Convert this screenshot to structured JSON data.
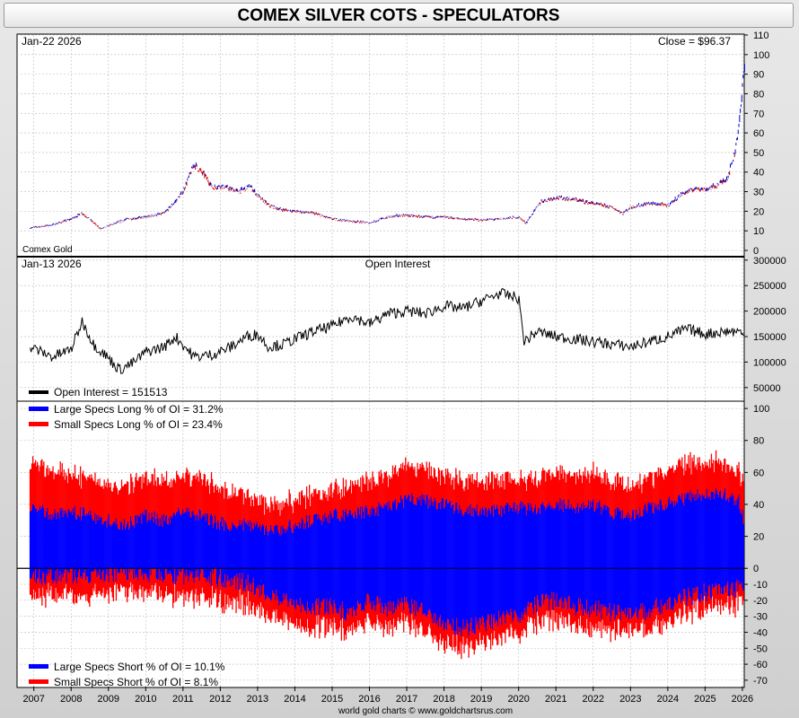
{
  "title": "COMEX SILVER COTS - SPECULATORS",
  "footer": "world gold charts © www.goldchartsrus.com",
  "colors": {
    "price_up": "#0000cc",
    "price_down": "#cc0000",
    "oi_line": "#000000",
    "large_specs": "#0000ff",
    "small_specs": "#ff0000",
    "frame_bg": "#d9d9d9"
  },
  "chart_data": [
    {
      "type": "line",
      "panel": "price",
      "date_label": "Jan-22  2026",
      "close_label": "Close = $96.37",
      "series_label": "Comex Gold",
      "ylim": [
        0,
        110
      ],
      "yticks": [
        0,
        10,
        20,
        30,
        40,
        50,
        60,
        70,
        80,
        90,
        100,
        110
      ],
      "x": [
        2006.9,
        2007.5,
        2008.0,
        2008.3,
        2008.8,
        2009.0,
        2009.5,
        2010.0,
        2010.5,
        2010.8,
        2011.0,
        2011.3,
        2011.6,
        2011.8,
        2012.0,
        2012.5,
        2012.8,
        2013.0,
        2013.3,
        2013.6,
        2014.0,
        2014.5,
        2015.0,
        2015.5,
        2016.0,
        2016.5,
        2016.9,
        2017.5,
        2018.0,
        2018.5,
        2019.0,
        2019.5,
        2020.0,
        2020.2,
        2020.6,
        2021.0,
        2021.5,
        2022.0,
        2022.5,
        2022.8,
        2023.0,
        2023.5,
        2024.0,
        2024.4,
        2024.8,
        2025.0,
        2025.3,
        2025.6,
        2025.8,
        2025.95,
        2026.06
      ],
      "values": [
        11.5,
        13,
        16,
        19,
        11,
        12.5,
        16,
        17,
        19,
        25,
        30,
        44,
        38,
        32,
        33,
        30,
        33,
        28,
        23,
        21,
        20,
        19,
        16,
        15,
        14,
        17,
        18,
        17,
        17,
        16,
        15.5,
        16,
        17,
        14,
        25,
        27,
        26,
        24,
        22,
        19,
        22,
        24,
        23,
        29,
        32,
        31,
        33,
        37,
        50,
        70,
        96.37
      ]
    },
    {
      "type": "line",
      "panel": "open_interest",
      "date_label": "Jan-13  2026",
      "title": "Open Interest",
      "legend": "Open Interest = 151513",
      "ylim": [
        25000,
        305000
      ],
      "yticks": [
        50000,
        100000,
        150000,
        200000,
        250000,
        300000
      ],
      "ytick_labels": [
        "50000",
        "100000",
        "150000",
        "200000",
        "250000",
        "300000"
      ],
      "x": [
        2006.9,
        2007.5,
        2008.0,
        2008.3,
        2008.6,
        2008.9,
        2009.3,
        2009.7,
        2010.0,
        2010.5,
        2010.8,
        2011.3,
        2011.8,
        2012.3,
        2012.7,
        2013.0,
        2013.3,
        2013.7,
        2014.0,
        2014.5,
        2015.0,
        2015.5,
        2016.0,
        2016.5,
        2017.0,
        2017.5,
        2018.0,
        2018.5,
        2019.0,
        2019.5,
        2020.0,
        2020.15,
        2020.5,
        2021.0,
        2021.5,
        2022.0,
        2022.5,
        2023.0,
        2023.5,
        2024.0,
        2024.5,
        2025.0,
        2025.5,
        2025.9,
        2026.03
      ],
      "values": [
        130000,
        110000,
        125000,
        180000,
        135000,
        115000,
        85000,
        100000,
        120000,
        130000,
        150000,
        110000,
        115000,
        130000,
        150000,
        155000,
        130000,
        135000,
        145000,
        160000,
        170000,
        190000,
        175000,
        195000,
        200000,
        195000,
        210000,
        205000,
        220000,
        235000,
        225000,
        140000,
        160000,
        150000,
        145000,
        140000,
        135000,
        130000,
        140000,
        150000,
        165000,
        155000,
        160000,
        160000,
        151513
      ]
    },
    {
      "type": "area",
      "panel": "cots",
      "ylim": [
        -74,
        104
      ],
      "yticks": [
        -70,
        -60,
        -50,
        -40,
        -30,
        -20,
        -10,
        0,
        20,
        40,
        60,
        80,
        100
      ],
      "legend_top": [
        "Large Specs Long % of OI = 31.2%",
        "Small Specs Long % of OI = 23.4%"
      ],
      "legend_bottom": [
        "Large Specs Short % of OI = 10.1%",
        "Small Specs Short % of OI = 8.1%"
      ],
      "x": [
        2006.9,
        2007.5,
        2008.0,
        2008.5,
        2009.0,
        2009.5,
        2010.0,
        2010.5,
        2011.0,
        2011.5,
        2012.0,
        2012.5,
        2013.0,
        2013.3,
        2013.6,
        2014.0,
        2014.5,
        2015.0,
        2015.5,
        2016.0,
        2016.5,
        2017.0,
        2017.5,
        2018.0,
        2018.5,
        2019.0,
        2019.5,
        2020.0,
        2020.5,
        2021.0,
        2021.5,
        2022.0,
        2022.5,
        2023.0,
        2023.5,
        2024.0,
        2024.5,
        2025.0,
        2025.5,
        2025.9,
        2026.03
      ],
      "series": [
        {
          "name": "Large Specs Long",
          "values": [
            40,
            33,
            36,
            33,
            30,
            28,
            33,
            30,
            36,
            33,
            28,
            27,
            28,
            23,
            24,
            27,
            30,
            33,
            34,
            36,
            38,
            43,
            42,
            40,
            37,
            36,
            36,
            38,
            37,
            40,
            38,
            40,
            35,
            33,
            38,
            41,
            44,
            47,
            47,
            42,
            31.2
          ]
        },
        {
          "name": "Small Specs Long",
          "values": [
            28,
            27,
            24,
            22,
            23,
            25,
            22,
            24,
            22,
            23,
            22,
            20,
            17,
            15,
            16,
            16,
            16,
            16,
            17,
            18,
            18,
            20,
            20,
            18,
            18,
            19,
            18,
            17,
            18,
            20,
            20,
            20,
            19,
            18,
            19,
            20,
            21,
            20,
            20,
            18,
            23.4
          ]
        },
        {
          "name": "Large Specs Short",
          "values": [
            5,
            4,
            4,
            5,
            3,
            3,
            3,
            3,
            5,
            4,
            6,
            8,
            12,
            18,
            20,
            22,
            25,
            24,
            28,
            20,
            25,
            22,
            28,
            35,
            38,
            35,
            32,
            30,
            22,
            20,
            24,
            25,
            28,
            30,
            26,
            22,
            18,
            15,
            14,
            12,
            10.1
          ]
        },
        {
          "name": "Small Specs Short",
          "values": [
            12,
            12,
            13,
            12,
            12,
            11,
            11,
            12,
            13,
            13,
            14,
            13,
            13,
            12,
            13,
            13,
            13,
            12,
            12,
            12,
            12,
            11,
            12,
            13,
            12,
            12,
            12,
            12,
            11,
            12,
            12,
            12,
            12,
            11,
            11,
            11,
            10,
            10,
            10,
            10,
            8.1
          ]
        }
      ]
    }
  ],
  "x_axis": {
    "range": [
      2006.55,
      2026.05
    ],
    "labels": [
      "2007",
      "2008",
      "2009",
      "2010",
      "2011",
      "2012",
      "2013",
      "2014",
      "2015",
      "2016",
      "2017",
      "2018",
      "2019",
      "2020",
      "2021",
      "2022",
      "2023",
      "2024",
      "2025",
      "2026"
    ]
  }
}
